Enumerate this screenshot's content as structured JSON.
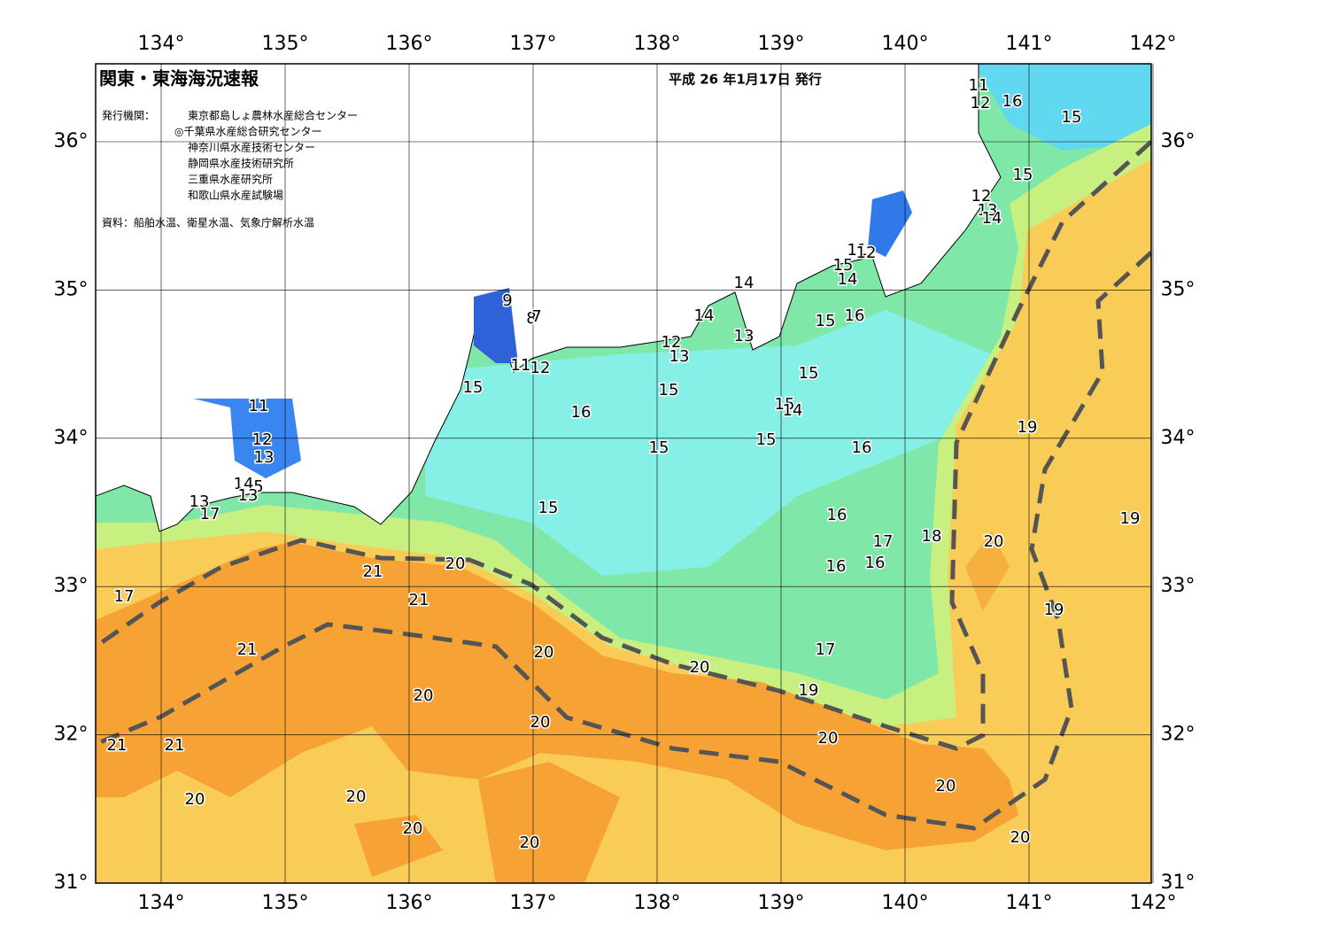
{
  "header": {
    "title": "関東・東海海況速報",
    "date": "平成 26 年1月17日 発行"
  },
  "issuers": {
    "label": "発行機関：",
    "items": [
      "東京都島しょ農林水産総合センター",
      "◎千葉県水産総合研究センター",
      "神奈川県水産技術センター",
      "静岡県水産技術研究所",
      "三重県水産研究所",
      "和歌山県水産試験場"
    ]
  },
  "source": "資料：船舶水温、衛星水温、気象庁解析水温",
  "map": {
    "lon_ticks": [
      {
        "value": 134,
        "label": "134°"
      },
      {
        "value": 135,
        "label": "135°"
      },
      {
        "value": 136,
        "label": "136°"
      },
      {
        "value": 137,
        "label": "137°"
      },
      {
        "value": 138,
        "label": "138°"
      },
      {
        "value": 139,
        "label": "139°"
      },
      {
        "value": 140,
        "label": "140°"
      },
      {
        "value": 141,
        "label": "141°"
      },
      {
        "value": 142,
        "label": "142°"
      }
    ],
    "lat_ticks": [
      {
        "value": 36,
        "label": "36°"
      },
      {
        "value": 35,
        "label": "35°"
      },
      {
        "value": 34,
        "label": "34°"
      },
      {
        "value": 33,
        "label": "33°"
      },
      {
        "value": 32,
        "label": "32°"
      },
      {
        "value": 31,
        "label": "31°"
      }
    ],
    "isotherm_labels": [
      11,
      12,
      16,
      15,
      15,
      12,
      13,
      14,
      11,
      12,
      15,
      14,
      14,
      16,
      15,
      9,
      8,
      7,
      14,
      13,
      12,
      13,
      15,
      11,
      12,
      15,
      15,
      11,
      15,
      14,
      16,
      19,
      12,
      15,
      16,
      15,
      13,
      14,
      5,
      13,
      13,
      17,
      15,
      16,
      19,
      18,
      17,
      20,
      16,
      16,
      20,
      21,
      17,
      21,
      19,
      21,
      17,
      20,
      20,
      19,
      20,
      20,
      20,
      21,
      21,
      20,
      20,
      20,
      20,
      20,
      20
    ]
  }
}
